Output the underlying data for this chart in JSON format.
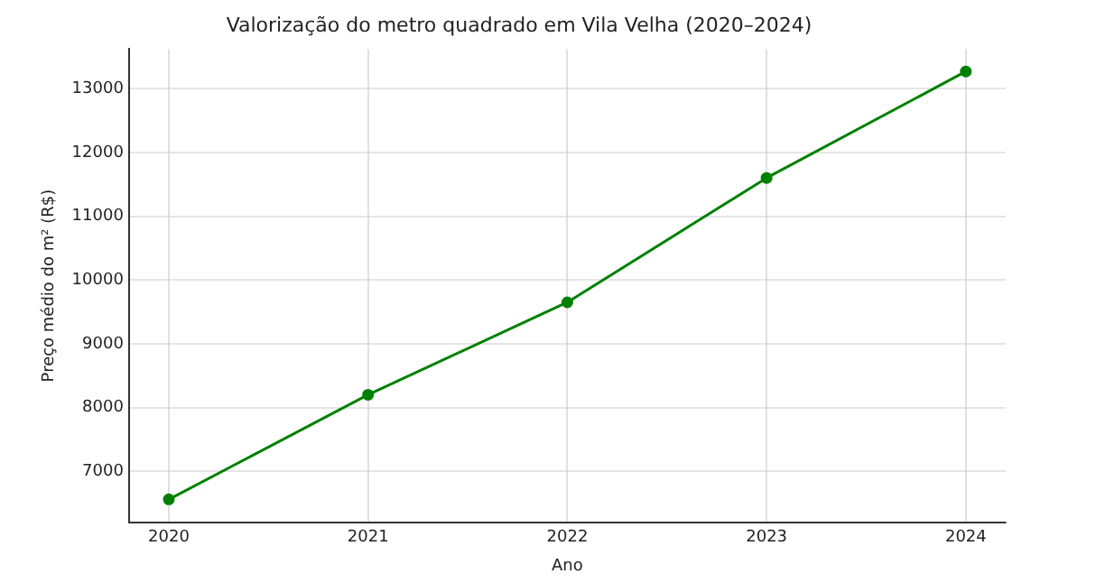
{
  "chart_data": {
    "type": "line",
    "title": "Valorização do metro quadrado em Vila Velha (2020–2024)",
    "xlabel": "Ano",
    "ylabel": "Preço médio do m² (R$)",
    "x": [
      2020,
      2021,
      2022,
      2023,
      2024
    ],
    "series": [
      {
        "color": "#008000",
        "values": [
          6560,
          8200,
          9650,
          11600,
          13270
        ]
      }
    ],
    "xlim": [
      2019.8,
      2024.2
    ],
    "xticks": [
      2020,
      2021,
      2022,
      2023,
      2024
    ],
    "ylim": [
      6200,
      13620
    ],
    "yticks": [
      7000,
      8000,
      9000,
      10000,
      11000,
      12000,
      13000
    ],
    "grid": true,
    "marker": "circle",
    "line_style": "solid",
    "legend": false
  }
}
